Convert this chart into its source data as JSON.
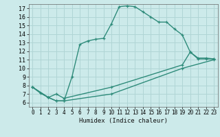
{
  "title": "",
  "xlabel": "Humidex (Indice chaleur)",
  "bg_color": "#cceaea",
  "grid_color": "#b0d5d5",
  "line_color": "#2e8b7a",
  "xlim": [
    -0.5,
    23.5
  ],
  "ylim": [
    5.5,
    17.5
  ],
  "xticks": [
    0,
    1,
    2,
    3,
    4,
    5,
    6,
    7,
    8,
    9,
    10,
    11,
    12,
    13,
    14,
    15,
    16,
    17,
    18,
    19,
    20,
    21,
    22,
    23
  ],
  "yticks": [
    6,
    7,
    8,
    9,
    10,
    11,
    12,
    13,
    14,
    15,
    16,
    17
  ],
  "line1_x": [
    0,
    1,
    2,
    3,
    4,
    5,
    6,
    7,
    8,
    9,
    10,
    11,
    12,
    13,
    14,
    15,
    16,
    17,
    18,
    19,
    20,
    21,
    22,
    23
  ],
  "line1_y": [
    7.8,
    7.1,
    6.6,
    6.2,
    6.2,
    9.0,
    12.8,
    13.2,
    13.4,
    13.5,
    15.2,
    17.2,
    17.3,
    17.2,
    16.6,
    16.0,
    15.4,
    15.4,
    14.6,
    13.9,
    11.9,
    11.2,
    11.2,
    11.1
  ],
  "line2_x": [
    0,
    2,
    3,
    4,
    10,
    19,
    20,
    21,
    22,
    23
  ],
  "line2_y": [
    7.8,
    6.6,
    7.0,
    6.5,
    7.8,
    10.4,
    11.9,
    11.1,
    11.1,
    11.1
  ],
  "line3_x": [
    0,
    2,
    3,
    4,
    10,
    19,
    23
  ],
  "line3_y": [
    7.8,
    6.6,
    6.2,
    6.2,
    7.0,
    10.0,
    11.0
  ]
}
